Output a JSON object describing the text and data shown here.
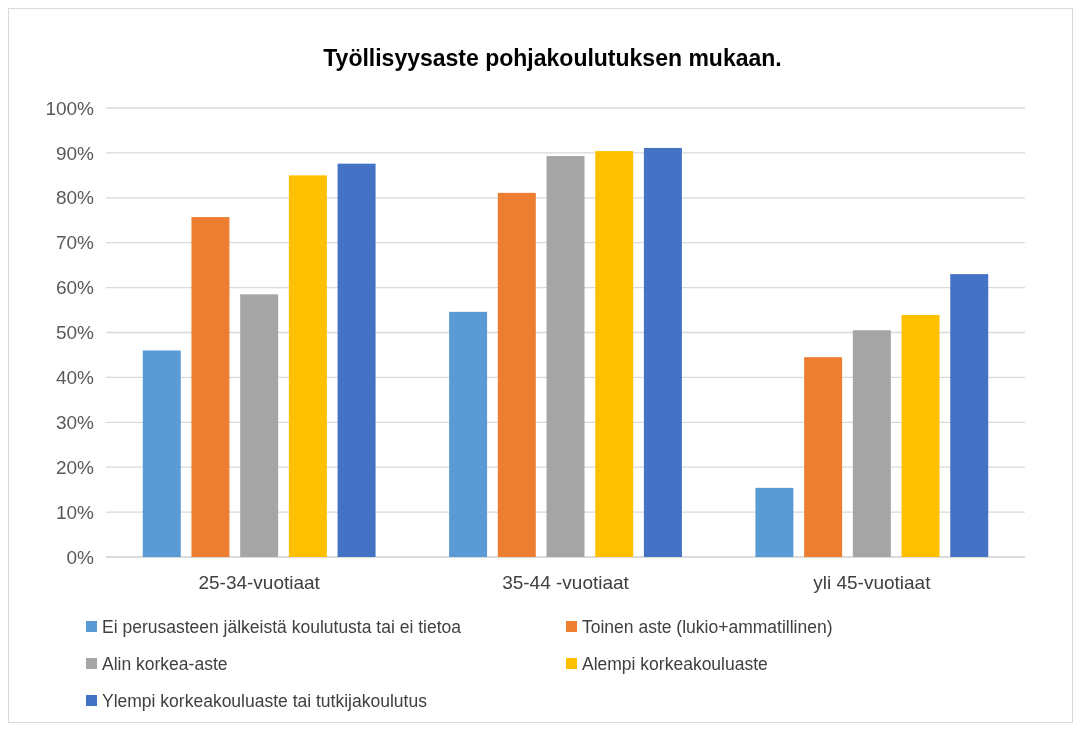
{
  "chart_data": {
    "type": "bar",
    "title": "Työllisyysaste pohjakoulutuksen mukaan.",
    "categories": [
      "25-34-vuotiaat",
      "35-44 -vuotiaat",
      "yli 45-vuotiaat"
    ],
    "series": [
      {
        "name": "Ei perusasteen jälkeistä koulutusta tai ei tietoa",
        "color": "#5b9bd5",
        "values": [
          46.0,
          54.6,
          15.4
        ]
      },
      {
        "name": "Toinen aste (lukio+ammatillinen)",
        "color": "#ed7d31",
        "values": [
          75.7,
          81.1,
          44.5
        ]
      },
      {
        "name": "Alin korkea-aste",
        "color": "#a5a5a5",
        "values": [
          58.5,
          89.3,
          50.5
        ]
      },
      {
        "name": "Alempi korkeakouluaste",
        "color": "#ffc000",
        "values": [
          85.0,
          90.4,
          53.9
        ]
      },
      {
        "name": "Ylempi korkeakouluaste tai tutkijakoulutus",
        "color": "#4472c4",
        "values": [
          87.6,
          91.1,
          63.0
        ]
      }
    ],
    "ylim": [
      0,
      100
    ],
    "yticks": [
      {
        "value": 0,
        "label": "0%"
      },
      {
        "value": 10,
        "label": "10%"
      },
      {
        "value": 20,
        "label": "20%"
      },
      {
        "value": 30,
        "label": "30%"
      },
      {
        "value": 40,
        "label": "40%"
      },
      {
        "value": 50,
        "label": "50%"
      },
      {
        "value": 60,
        "label": "60%"
      },
      {
        "value": 70,
        "label": "70%"
      },
      {
        "value": 80,
        "label": "80%"
      },
      {
        "value": 90,
        "label": "90%"
      },
      {
        "value": 100,
        "label": "100%"
      }
    ],
    "grid": "y",
    "legend": "bottom"
  }
}
